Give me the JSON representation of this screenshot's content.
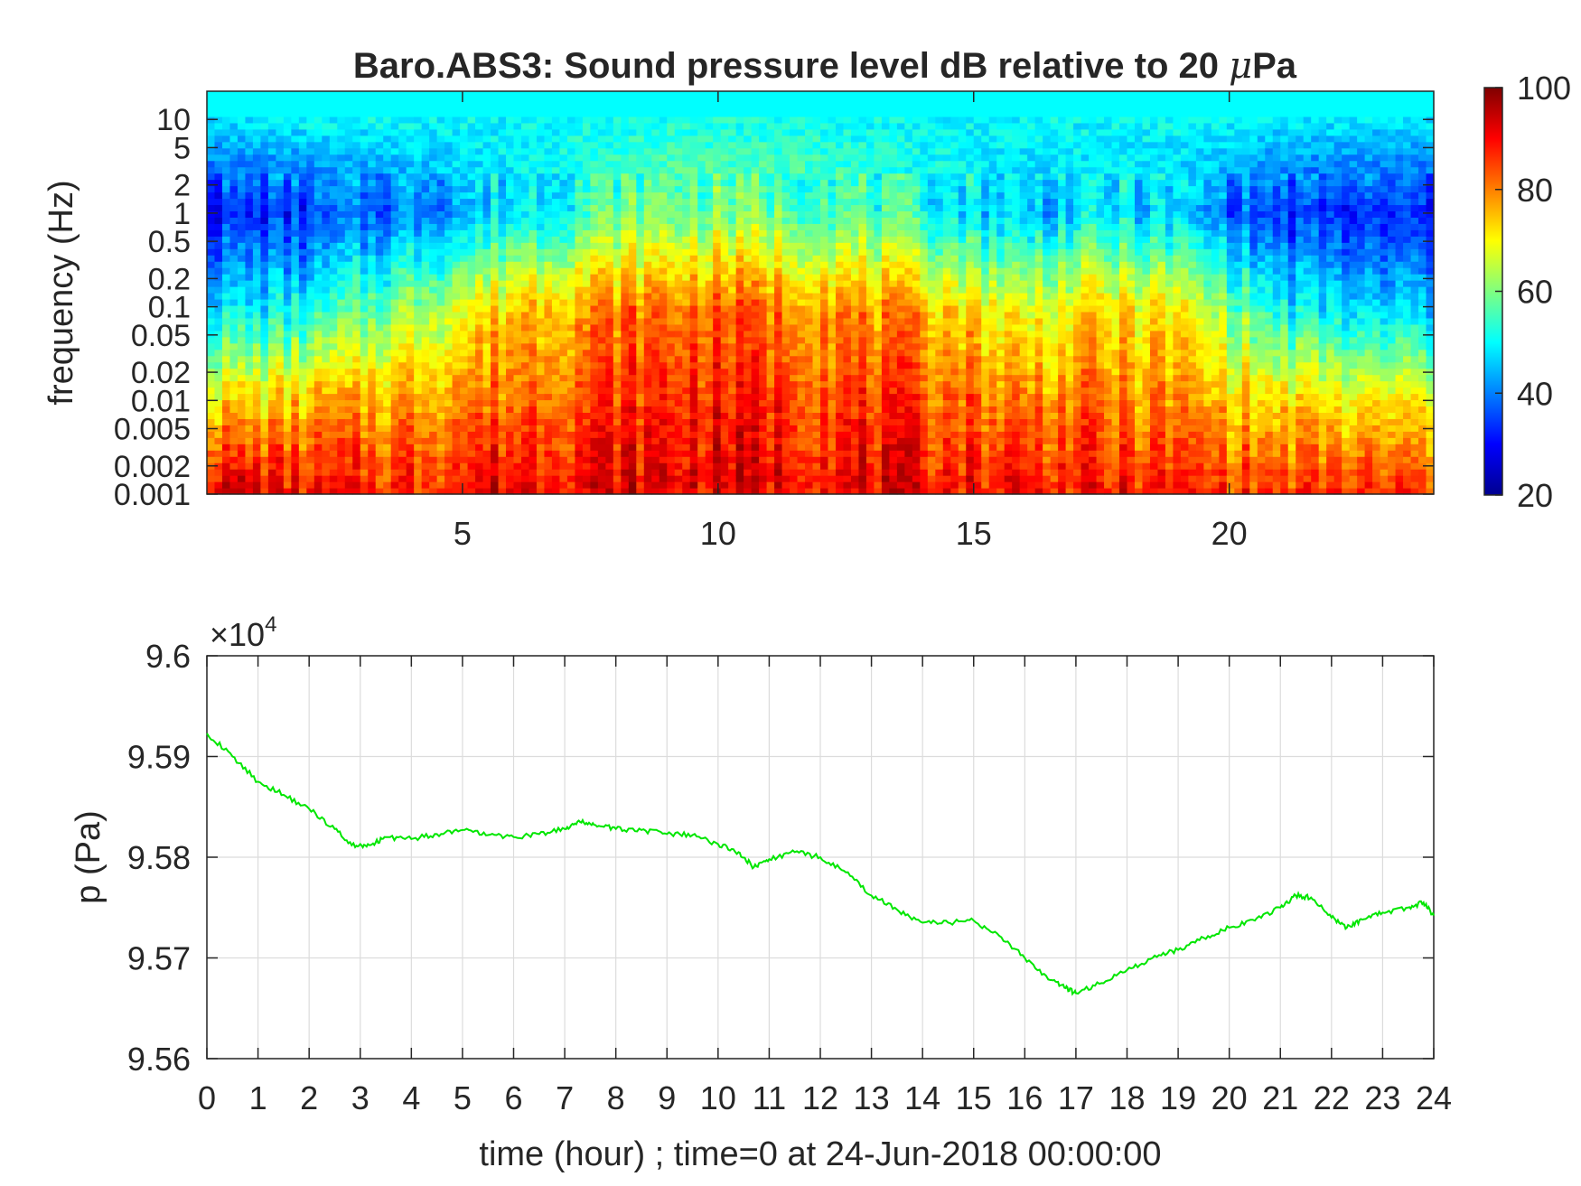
{
  "chart_data": [
    {
      "type": "heatmap",
      "title_prefix": "Baro.ABS3: Sound pressure level dB relative to 20 ",
      "title_mu": "μ",
      "title_suffix": "Pa",
      "xlabel": "",
      "ylabel": "frequency (Hz)",
      "xlim": [
        0,
        24
      ],
      "x_ticks": [
        "5",
        "10",
        "15",
        "20"
      ],
      "y_scale": "log",
      "ylim": [
        0.001,
        20
      ],
      "y_ticks": [
        "0.001",
        "0.002",
        "0.005",
        "0.01",
        "0.02",
        "0.05",
        "0.1",
        "0.2",
        "0.5",
        "1",
        "2",
        "5",
        "10"
      ],
      "colormap": "jet",
      "colorbar_ticks": [
        "20",
        "40",
        "60",
        "80",
        "100"
      ],
      "clim": [
        20,
        100
      ],
      "sample_columns_hours": [
        0.5,
        2,
        4,
        6,
        8,
        10,
        12,
        14,
        16,
        17.5,
        19,
        21,
        23
      ],
      "sample_levels_dB_at_0p001_0p01_0p1_1_10Hz": [
        [
          95,
          72,
          48,
          32,
          48
        ],
        [
          88,
          75,
          50,
          33,
          50
        ],
        [
          88,
          78,
          62,
          40,
          50
        ],
        [
          92,
          82,
          75,
          48,
          50
        ],
        [
          92,
          86,
          80,
          58,
          51
        ],
        [
          92,
          88,
          82,
          60,
          52
        ],
        [
          92,
          86,
          80,
          58,
          51
        ],
        [
          90,
          84,
          76,
          52,
          50
        ],
        [
          90,
          80,
          68,
          45,
          50
        ],
        [
          88,
          80,
          72,
          48,
          50
        ],
        [
          88,
          78,
          70,
          45,
          50
        ],
        [
          86,
          72,
          50,
          33,
          49
        ],
        [
          86,
          70,
          45,
          32,
          48
        ]
      ]
    },
    {
      "type": "line",
      "exponent_base": "×10",
      "exponent_power": "4",
      "xlabel": "time (hour) ; time=0 at 24-Jun-2018 00:00:00",
      "ylabel": "p (Pa)",
      "xlim": [
        0,
        24
      ],
      "ylim": [
        95600,
        96000
      ],
      "x_ticks": [
        "0",
        "1",
        "2",
        "3",
        "4",
        "5",
        "6",
        "7",
        "8",
        "9",
        "10",
        "11",
        "12",
        "13",
        "14",
        "15",
        "16",
        "17",
        "18",
        "19",
        "20",
        "21",
        "22",
        "23",
        "24"
      ],
      "y_ticks": [
        "9.56",
        "9.57",
        "9.58",
        "9.59",
        "9.6"
      ],
      "grid": true,
      "line_color": "#00e600",
      "series": [
        {
          "x": [
            0,
            0.5,
            1,
            1.5,
            2,
            2.5,
            2.9,
            3.2,
            3.5,
            4,
            4.5,
            5,
            5.5,
            6,
            6.5,
            7,
            7.3,
            7.6,
            8,
            8.5,
            9,
            9.5,
            10,
            10.4,
            10.7,
            11,
            11.5,
            12,
            12.5,
            13,
            13.5,
            14,
            14.5,
            15,
            15.5,
            16,
            16.5,
            16.8,
            17,
            17.5,
            18,
            18.5,
            19,
            19.5,
            20,
            20.5,
            21,
            21.3,
            21.6,
            22,
            22.3,
            22.6,
            23,
            23.5,
            23.8,
            24
          ],
          "y": [
            95923,
            95900,
            95875,
            95862,
            95848,
            95828,
            95810,
            95812,
            95820,
            95818,
            95823,
            95827,
            95822,
            95820,
            95823,
            95828,
            95835,
            95832,
            95828,
            95827,
            95823,
            95822,
            95813,
            95805,
            95790,
            95798,
            95805,
            95800,
            95785,
            95762,
            95748,
            95735,
            95735,
            95737,
            95722,
            95700,
            95678,
            95670,
            95665,
            95675,
            95688,
            95700,
            95708,
            95720,
            95730,
            95737,
            95750,
            95762,
            95760,
            95740,
            95730,
            95738,
            95745,
            95750,
            95755,
            95742
          ]
        }
      ]
    }
  ],
  "colors": {
    "axis": "#262626",
    "grid": "#dcdcdc",
    "line": "#00e600"
  }
}
